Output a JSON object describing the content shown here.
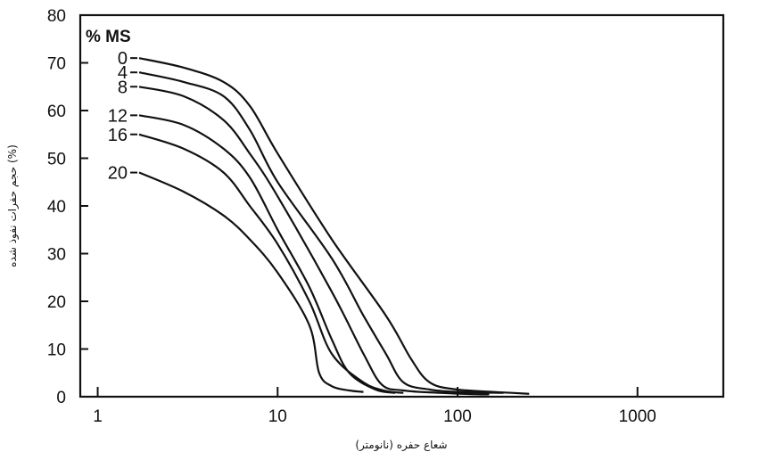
{
  "chart_data": {
    "type": "line",
    "title": "",
    "xlabel": "شعاع حفره (نانومتر)",
    "ylabel": "حجم حفرات نفوذ شده (%)",
    "x_scale": "log",
    "xlim": [
      0.8,
      3000
    ],
    "ylim": [
      0,
      80
    ],
    "x_ticks": [
      1,
      10,
      100,
      1000
    ],
    "x_tick_labels": [
      "1",
      "10",
      "100",
      "1000"
    ],
    "y_ticks": [
      0,
      10,
      20,
      30,
      40,
      50,
      60,
      70,
      80
    ],
    "y_tick_labels": [
      "0",
      "10",
      "20",
      "30",
      "40",
      "50",
      "60",
      "70",
      "80"
    ],
    "legend_title": "% MS",
    "grid": false,
    "series": [
      {
        "name": "0",
        "x": [
          1.7,
          3,
          5,
          7,
          10,
          20,
          40,
          55,
          70,
          100,
          200,
          250
        ],
        "y": [
          71,
          69,
          66,
          61,
          51,
          33,
          17,
          8,
          3,
          1.5,
          0.8,
          0.6
        ]
      },
      {
        "name": "4",
        "x": [
          1.7,
          3,
          5,
          7,
          10,
          20,
          30,
          40,
          50,
          70,
          100,
          180
        ],
        "y": [
          68,
          66,
          63,
          56,
          45,
          29,
          17,
          9,
          3,
          1.5,
          1,
          0.8
        ]
      },
      {
        "name": "8",
        "x": [
          1.7,
          3,
          5,
          7,
          10,
          20,
          30,
          38,
          50,
          80,
          130,
          150
        ],
        "y": [
          65,
          63,
          58,
          51,
          42,
          22,
          9,
          2.5,
          1.3,
          0.8,
          0.5,
          0.5
        ]
      },
      {
        "name": "12",
        "x": [
          1.7,
          3,
          5,
          7,
          10,
          15,
          20,
          25,
          35,
          45
        ],
        "y": [
          59,
          57,
          52,
          46,
          35,
          23,
          12,
          5,
          1.5,
          0.8
        ]
      },
      {
        "name": "16",
        "x": [
          1.7,
          3,
          5,
          7,
          10,
          15,
          20,
          30,
          40,
          50
        ],
        "y": [
          55,
          52,
          47,
          40,
          32,
          20,
          9,
          3,
          1.2,
          0.8
        ]
      },
      {
        "name": "20",
        "x": [
          1.7,
          3,
          5,
          7,
          10,
          15,
          17,
          20,
          25,
          30
        ],
        "y": [
          47,
          43,
          38,
          33,
          26,
          15,
          5,
          2.2,
          1.3,
          1
        ]
      }
    ]
  }
}
